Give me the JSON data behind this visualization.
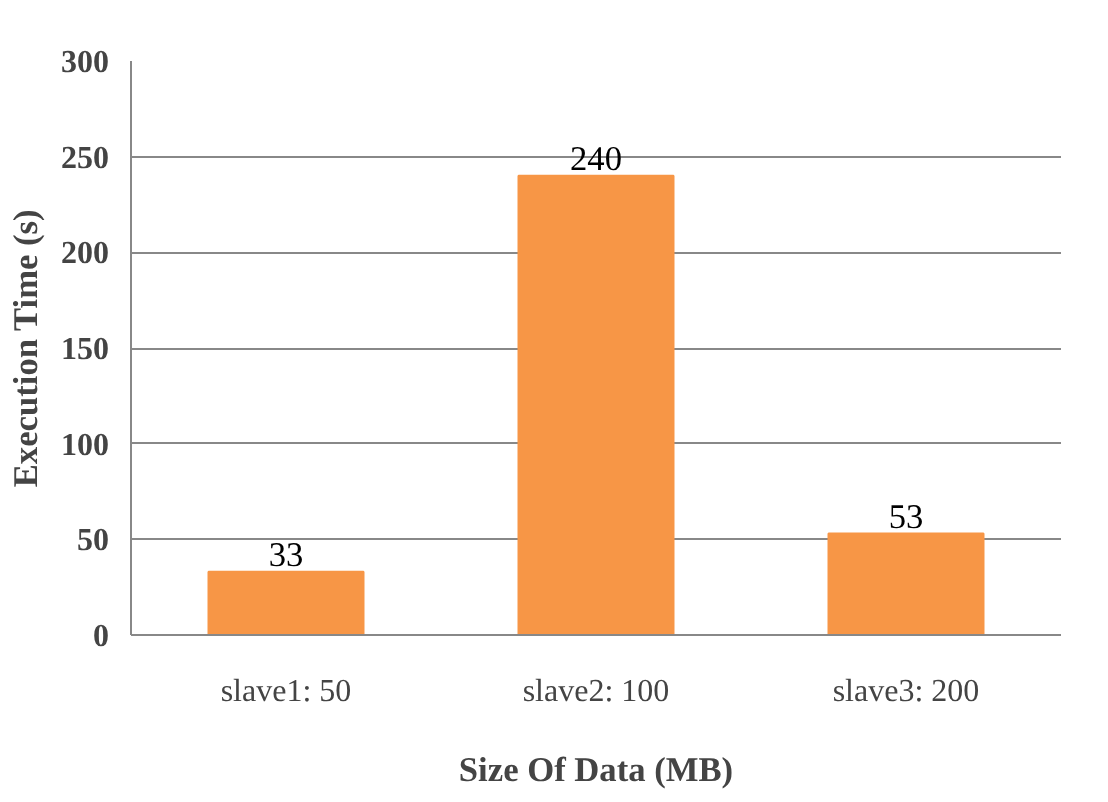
{
  "chart_data": {
    "type": "bar",
    "xlabel": "Size Of Data (MB)",
    "ylabel": "Execution Time (s)",
    "categories": [
      "slave1: 50",
      "slave2: 100",
      "slave3: 200"
    ],
    "values": [
      33,
      240,
      53
    ],
    "color": "#f79646",
    "ylim": [
      0,
      300
    ],
    "yticks": [
      0,
      50,
      100,
      150,
      200,
      250,
      300
    ],
    "grid": "y",
    "data_labels": true
  }
}
